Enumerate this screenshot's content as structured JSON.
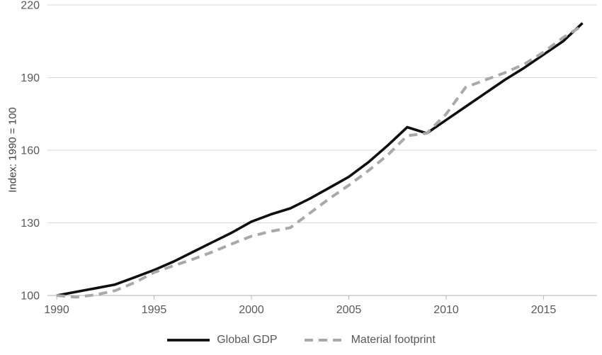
{
  "chart_data": {
    "type": "line",
    "title": "",
    "ylabel": "Index: 1990 = 100",
    "xlabel": "",
    "ylim": [
      100,
      220
    ],
    "xlim": [
      1990,
      2017
    ],
    "yticks": [
      100,
      130,
      160,
      190,
      220
    ],
    "xticks": [
      1990,
      1995,
      2000,
      2005,
      2010,
      2015
    ],
    "grid": "horizontal",
    "legend_position": "bottom",
    "x": [
      1990,
      1991,
      1992,
      1993,
      1994,
      1995,
      1996,
      1997,
      1998,
      1999,
      2000,
      2001,
      2002,
      2003,
      2004,
      2005,
      2006,
      2007,
      2008,
      2009,
      2010,
      2011,
      2012,
      2013,
      2014,
      2015,
      2016,
      2017
    ],
    "series": [
      {
        "name": "Global GDP",
        "style": "solid",
        "color": "#0f0f0f",
        "values": [
          100,
          101.5,
          103,
          104.5,
          107.5,
          110.5,
          114,
          118,
          122,
          126,
          130.5,
          133.5,
          136,
          140,
          144.5,
          149,
          155,
          162,
          169.5,
          167,
          172.5,
          178,
          183.5,
          189,
          194,
          199.5,
          205,
          212.5
        ]
      },
      {
        "name": "Material footprint",
        "style": "dashed",
        "color": "#a9a9a9",
        "values": [
          100,
          99.3,
          100.3,
          102,
          105.3,
          109.5,
          112.3,
          115,
          118,
          121.3,
          124.5,
          126.5,
          128,
          134,
          140,
          145.5,
          151.5,
          158,
          166,
          167,
          175,
          186,
          189,
          192,
          195.5,
          200.5,
          206.5,
          211.5
        ]
      }
    ],
    "colors": {
      "gridline": "#d9d9d9",
      "axis": "#bfbfbf",
      "tick_text": "#595959",
      "axis_title_text": "#404040",
      "background": "#ffffff"
    }
  }
}
